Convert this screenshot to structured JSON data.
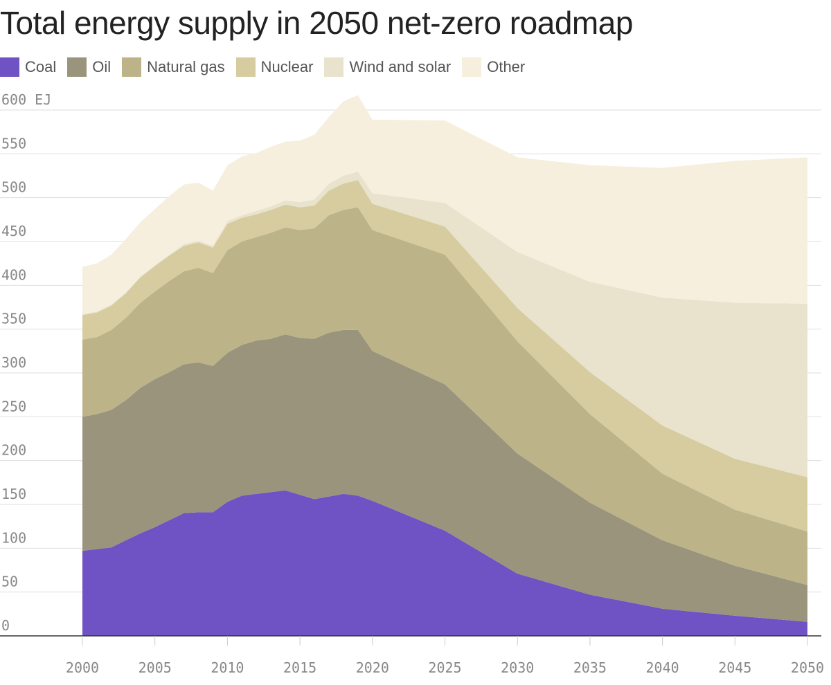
{
  "chart_data": {
    "type": "area",
    "stacked": true,
    "title": "Total energy supply in 2050 net-zero roadmap",
    "unit": "EJ",
    "ylim": [
      0,
      600
    ],
    "xlim": [
      2000,
      2050
    ],
    "x_ticks": [
      2000,
      2005,
      2010,
      2015,
      2020,
      2025,
      2030,
      2035,
      2040,
      2045,
      2050
    ],
    "y_ticks": [
      0,
      50,
      100,
      150,
      200,
      250,
      300,
      350,
      400,
      450,
      500,
      550,
      600
    ],
    "y_tick_labels": [
      "0",
      "50",
      "100",
      "150",
      "200",
      "250",
      "300",
      "350",
      "400",
      "450",
      "500",
      "550",
      "600 EJ"
    ],
    "grid": true,
    "legend_position": "top-left",
    "x": [
      2000,
      2001,
      2002,
      2003,
      2004,
      2005,
      2006,
      2007,
      2008,
      2009,
      2010,
      2011,
      2012,
      2013,
      2014,
      2015,
      2016,
      2017,
      2018,
      2019,
      2020,
      2025,
      2030,
      2035,
      2040,
      2045,
      2050
    ],
    "series": [
      {
        "name": "Coal",
        "color": "#6f52c4",
        "values": [
          97,
          99,
          101,
          109,
          117,
          124,
          132,
          140,
          141,
          141,
          153,
          160,
          162,
          164,
          166,
          161,
          156,
          159,
          162,
          160,
          154,
          120,
          71,
          47,
          31,
          23,
          16
        ]
      },
      {
        "name": "Oil",
        "color": "#9b947c",
        "values": [
          153,
          154,
          157,
          160,
          166,
          169,
          169,
          170,
          171,
          167,
          170,
          172,
          175,
          175,
          178,
          179,
          183,
          187,
          187,
          189,
          171,
          167,
          137,
          105,
          78,
          57,
          42
        ]
      },
      {
        "name": "Natural gas",
        "color": "#bdb389",
        "values": [
          88,
          88,
          91,
          94,
          97,
          100,
          104,
          106,
          108,
          106,
          117,
          118,
          118,
          121,
          122,
          123,
          126,
          134,
          137,
          140,
          138,
          148,
          128,
          101,
          76,
          64,
          61
        ]
      },
      {
        "name": "Nuclear",
        "color": "#d6cca0",
        "values": [
          28,
          28,
          28,
          28,
          29,
          29,
          29,
          29,
          29,
          29,
          30,
          27,
          26,
          26,
          26,
          26,
          26,
          28,
          30,
          31,
          30,
          32,
          38,
          48,
          55,
          58,
          62
        ]
      },
      {
        "name": "Wind and solar",
        "color": "#e9e2cc",
        "values": [
          1,
          1,
          1,
          1,
          1,
          1,
          1,
          2,
          2,
          2,
          3,
          3,
          4,
          4,
          5,
          6,
          7,
          8,
          9,
          10,
          12,
          27,
          64,
          103,
          146,
          178,
          198
        ]
      },
      {
        "name": "Other",
        "color": "#f6efdd",
        "values": [
          54,
          55,
          57,
          61,
          62,
          64,
          67,
          68,
          66,
          63,
          64,
          67,
          66,
          68,
          67,
          70,
          74,
          76,
          85,
          87,
          84,
          94,
          108,
          133,
          148,
          162,
          167
        ]
      }
    ]
  }
}
